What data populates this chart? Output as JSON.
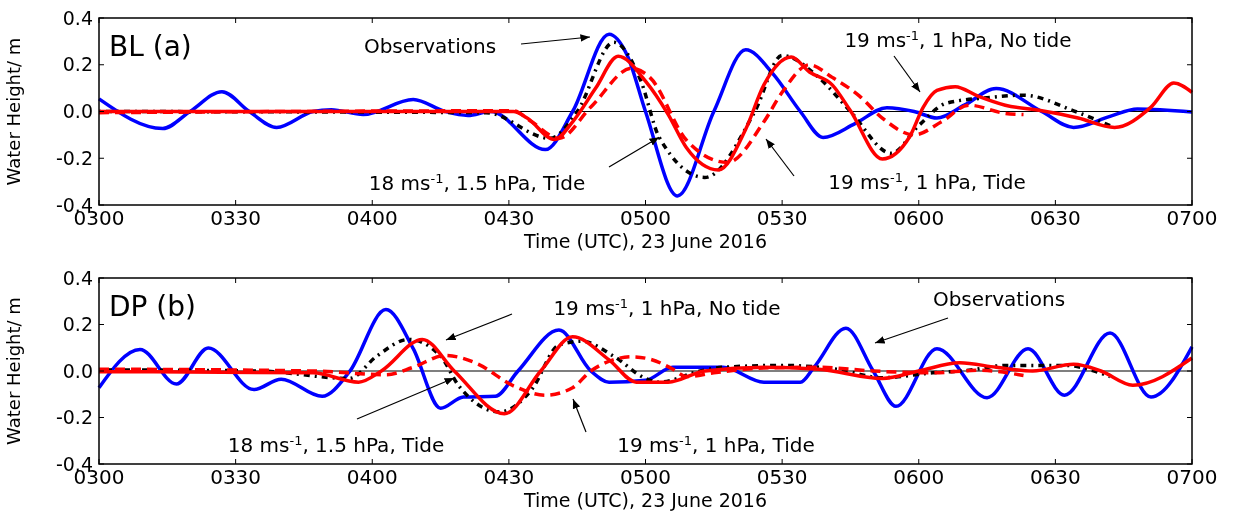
{
  "chart_data": [
    {
      "type": "line",
      "title": "BL (a)",
      "xlabel": "Time (UTC), 23 June 2016",
      "ylabel": "Water Height/ m",
      "xlim": [
        "2016-06-23T03:00",
        "2016-06-23T07:00"
      ],
      "xticks": [
        {
          "value": "2016-06-23T03:00",
          "label": "0300"
        },
        {
          "value": "2016-06-23T03:30",
          "label": "0330"
        },
        {
          "value": "2016-06-23T04:00",
          "label": "0400"
        },
        {
          "value": "2016-06-23T04:30",
          "label": "0430"
        },
        {
          "value": "2016-06-23T05:00",
          "label": "0500"
        },
        {
          "value": "2016-06-23T05:30",
          "label": "0530"
        },
        {
          "value": "2016-06-23T06:00",
          "label": "0600"
        },
        {
          "value": "2016-06-23T06:30",
          "label": "0630"
        },
        {
          "value": "2016-06-23T07:00",
          "label": "0700"
        }
      ],
      "ylim": [
        -0.4,
        0.4
      ],
      "yticks": [
        -0.4,
        -0.2,
        {
          "value": 0,
          "label": "0.0"
        },
        0.2,
        0.4
      ],
      "ref_lines": [
        {
          "axis": "y",
          "value": 0,
          "color": "#000000"
        }
      ],
      "series": [
        {
          "color": "#0000ff",
          "line_style": "solid",
          "x": [
            "2016-06-23T03:00",
            "2016-06-23T03:14",
            "2016-06-23T03:20",
            "2016-06-23T03:27",
            "2016-06-23T03:33",
            "2016-06-23T03:39",
            "2016-06-23T03:47",
            "2016-06-23T03:51",
            "2016-06-23T03:58",
            "2016-06-23T04:09",
            "2016-06-23T04:16",
            "2016-06-23T04:21",
            "2016-06-23T04:26",
            "2016-06-23T04:38",
            "2016-06-23T04:44",
            "2016-06-23T04:52",
            "2016-06-23T04:56",
            "2016-06-23T05:00",
            "2016-06-23T05:07",
            "2016-06-23T05:15",
            "2016-06-23T05:22",
            "2016-06-23T05:28",
            "2016-06-23T05:34",
            "2016-06-23T05:39",
            "2016-06-23T05:46",
            "2016-06-23T05:53",
            "2016-06-23T05:59",
            "2016-06-23T06:04",
            "2016-06-23T06:10",
            "2016-06-23T06:17",
            "2016-06-23T06:27",
            "2016-06-23T06:34",
            "2016-06-23T06:42",
            "2016-06-23T06:48",
            "2016-06-23T07:00"
          ],
          "values": [
            0.054,
            -0.073,
            0,
            0.085,
            0,
            -0.068,
            0,
            0.008,
            -0.013,
            0.051,
            0,
            -0.017,
            0,
            -0.163,
            0,
            0.331,
            0.24,
            0,
            -0.361,
            0,
            0.264,
            0.161,
            0,
            -0.111,
            -0.052,
            0.016,
            0,
            -0.028,
            0.027,
            0.098,
            0,
            -0.068,
            -0.021,
            0.011,
            -0.002
          ]
        },
        {
          "color": "#000000",
          "line_style": "dotted",
          "x": [
            "2016-06-23T03:00",
            "2016-06-23T04:25",
            "2016-06-23T04:39",
            "2016-06-23T04:45",
            "2016-06-23T04:53",
            "2016-06-23T04:59",
            "2016-06-23T05:03",
            "2016-06-23T05:13",
            "2016-06-23T05:24",
            "2016-06-23T05:30",
            "2016-06-23T05:38",
            "2016-06-23T05:45",
            "2016-06-23T05:54",
            "2016-06-23T06:00",
            "2016-06-23T06:06",
            "2016-06-23T06:15",
            "2016-06-23T06:23",
            "2016-06-23T06:34",
            "2016-06-23T06:42"
          ],
          "values": [
            0,
            -0.005,
            -0.115,
            0,
            0.296,
            0.13,
            -0.11,
            -0.282,
            0,
            0.24,
            0.146,
            0,
            -0.179,
            -0.06,
            0.035,
            0.059,
            0.07,
            0.003,
            -0.06
          ]
        },
        {
          "color": "#ff0000",
          "line_style": "dashed",
          "x": [
            "2016-06-23T03:00",
            "2016-06-23T04:31",
            "2016-06-23T04:35",
            "2016-06-23T04:41",
            "2016-06-23T04:48",
            "2016-06-23T04:57",
            "2016-06-23T05:01",
            "2016-06-23T05:09",
            "2016-06-23T05:18",
            "2016-06-23T05:26",
            "2016-06-23T05:30",
            "2016-06-23T05:36",
            "2016-06-23T05:41",
            "2016-06-23T05:47",
            "2016-06-23T05:52",
            "2016-06-23T05:59",
            "2016-06-23T06:05",
            "2016-06-23T06:11",
            "2016-06-23T06:19",
            "2016-06-23T06:23"
          ],
          "values": [
            -0.005,
            0.003,
            -0.044,
            -0.115,
            0.019,
            0.185,
            0.145,
            -0.123,
            -0.218,
            -0.044,
            0.082,
            0.2,
            0.146,
            0.066,
            -0.028,
            -0.1,
            -0.044,
            0.027,
            -0.008,
            -0.013
          ]
        },
        {
          "color": "#ff0000",
          "line_style": "solid",
          "x": [
            "2016-06-23T03:00",
            "2016-06-23T04:31",
            "2016-06-23T04:34",
            "2016-06-23T04:40",
            "2016-06-23T04:44",
            "2016-06-23T04:49",
            "2016-06-23T04:54",
            "2016-06-23T05:00",
            "2016-06-23T05:05",
            "2016-06-23T05:09",
            "2016-06-23T05:16",
            "2016-06-23T05:22",
            "2016-06-23T05:26",
            "2016-06-23T05:32",
            "2016-06-23T05:36",
            "2016-06-23T05:41",
            "2016-06-23T05:45",
            "2016-06-23T05:52",
            "2016-06-23T05:58",
            "2016-06-23T06:01",
            "2016-06-23T06:04",
            "2016-06-23T06:08",
            "2016-06-23T06:13",
            "2016-06-23T06:19",
            "2016-06-23T06:27",
            "2016-06-23T06:35",
            "2016-06-23T06:43",
            "2016-06-23T06:51",
            "2016-06-23T06:56",
            "2016-06-23T07:00"
          ],
          "values": [
            0,
            0,
            -0.028,
            -0.12,
            -0.044,
            0.098,
            0.236,
            0.13,
            -0.013,
            -0.155,
            -0.25,
            -0.076,
            0.114,
            0.233,
            0.169,
            0.114,
            0.003,
            -0.203,
            -0.108,
            0.019,
            0.09,
            0.106,
            0.066,
            0.027,
            0.003,
            -0.028,
            -0.068,
            0.019,
            0.122,
            0.082
          ]
        }
      ],
      "annotations": [
        "Observations",
        {
          "text": "18 ms$^{-1}$, 1.5 hPa, Tide",
          "x": "2016-06-23T05:03",
          "y": -0.11
        },
        "19 ms$^{-1}$, 1 hPa, Tide",
        "19 ms$^{-1}$, 1 hPa, No tide"
      ]
    },
    {
      "type": "line",
      "title": "DP (b)",
      "xlabel": "Time (UTC), 23 June 2016",
      "ylabel": "Water Height/ m",
      "xlim": [
        "2016-06-23T03:00",
        "2016-06-23T07:00"
      ],
      "xticks": [
        {
          "value": "2016-06-23T03:00",
          "label": "0300"
        },
        {
          "value": "2016-06-23T03:30",
          "label": "0330"
        },
        {
          "value": "2016-06-23T04:00",
          "label": "0400"
        },
        {
          "value": "2016-06-23T04:30",
          "label": "0430"
        },
        {
          "value": "2016-06-23T05:00",
          "label": "0500"
        },
        {
          "value": "2016-06-23T05:30",
          "label": "0530"
        },
        {
          "value": "2016-06-23T06:00",
          "label": "0600"
        },
        {
          "value": "2016-06-23T06:30",
          "label": "0630"
        },
        {
          "value": "2016-06-23T07:00",
          "label": "0700"
        }
      ],
      "ylim": [
        -0.4,
        0.4
      ],
      "yticks": [
        -0.4,
        -0.2,
        {
          "value": 0,
          "label": "0.0"
        },
        0.2,
        0.4
      ],
      "ref_lines": [
        {
          "axis": "y",
          "value": 0,
          "color": "#000000"
        }
      ],
      "series": [
        {
          "color": "#0000ff",
          "line_style": "solid",
          "x": [
            "2016-06-23T03:00",
            "2016-06-23T03:09",
            "2016-06-23T03:17",
            "2016-06-23T03:24",
            "2016-06-23T03:34",
            "2016-06-23T03:40",
            "2016-06-23T03:49",
            "2016-06-23T03:55",
            "2016-06-23T04:03",
            "2016-06-23T04:09",
            "2016-06-23T04:15",
            "2016-06-23T04:20",
            "2016-06-23T04:27",
            "2016-06-23T04:32",
            "2016-06-23T04:41",
            "2016-06-23T04:48",
            "2016-06-23T04:52",
            "2016-06-23T05:00",
            "2016-06-23T05:06",
            "2016-06-23T05:17",
            "2016-06-23T05:26",
            "2016-06-23T05:34",
            "2016-06-23T05:37",
            "2016-06-23T05:44",
            "2016-06-23T05:50",
            "2016-06-23T05:55",
            "2016-06-23T06:04",
            "2016-06-23T06:15",
            "2016-06-23T06:24",
            "2016-06-23T06:32",
            "2016-06-23T06:42",
            "2016-06-23T06:51",
            "2016-06-23T07:00"
          ],
          "values": [
            -0.072,
            0.093,
            -0.056,
            0.099,
            -0.08,
            -0.035,
            -0.109,
            -0.003,
            0.264,
            0.096,
            -0.16,
            -0.112,
            -0.109,
            0,
            0.176,
            0,
            -0.048,
            -0.04,
            0.016,
            0.016,
            -0.048,
            -0.048,
            0.016,
            0.184,
            0,
            -0.152,
            0.096,
            -0.115,
            0.096,
            -0.104,
            0.163,
            -0.112,
            0.104
          ]
        },
        {
          "color": "#000000",
          "line_style": "dotted",
          "x": [
            "2016-06-23T03:00",
            "2016-06-23T03:35",
            "2016-06-23T03:55",
            "2016-06-23T04:01",
            "2016-06-23T04:08",
            "2016-06-23T04:15",
            "2016-06-23T04:19",
            "2016-06-23T04:28",
            "2016-06-23T04:35",
            "2016-06-23T04:41",
            "2016-06-23T04:46",
            "2016-06-23T04:53",
            "2016-06-23T05:00",
            "2016-06-23T05:03",
            "2016-06-23T05:12",
            "2016-06-23T05:17",
            "2016-06-23T05:30",
            "2016-06-23T05:42",
            "2016-06-23T05:52",
            "2016-06-23T06:03",
            "2016-06-23T06:11",
            "2016-06-23T06:19",
            "2016-06-23T06:32",
            "2016-06-23T06:42"
          ],
          "values": [
            0.005,
            0,
            -0.032,
            0.064,
            0.136,
            0.064,
            -0.064,
            -0.176,
            -0.08,
            0.112,
            0.128,
            0.064,
            -0.032,
            -0.048,
            0,
            0.016,
            0.024,
            0.008,
            -0.029,
            -0.008,
            0.003,
            0.024,
            0.024,
            -0.024
          ]
        },
        {
          "color": "#ff0000",
          "line_style": "dashed",
          "x": [
            "2016-06-23T03:00",
            "2016-06-23T03:47",
            "2016-06-23T04:03",
            "2016-06-23T04:09",
            "2016-06-23T04:16",
            "2016-06-23T04:23",
            "2016-06-23T04:31",
            "2016-06-23T04:38",
            "2016-06-23T04:44",
            "2016-06-23T04:48",
            "2016-06-23T04:57",
            "2016-06-23T05:01",
            "2016-06-23T05:06",
            "2016-06-23T05:09",
            "2016-06-23T05:15",
            "2016-06-23T05:26",
            "2016-06-23T05:38",
            "2016-06-23T05:50",
            "2016-06-23T06:03",
            "2016-06-23T06:13",
            "2016-06-23T06:23"
          ],
          "values": [
            0.008,
            0,
            -0.016,
            0.016,
            0.067,
            0.032,
            -0.064,
            -0.104,
            -0.072,
            0,
            0.061,
            0.051,
            0.008,
            -0.024,
            -0.008,
            0.013,
            0.016,
            0,
            -0.008,
            0.003,
            -0.019
          ]
        },
        {
          "color": "#ff0000",
          "line_style": "solid",
          "x": [
            "2016-06-23T03:00",
            "2016-06-23T03:47",
            "2016-06-23T03:57",
            "2016-06-23T04:02",
            "2016-06-23T04:11",
            "2016-06-23T04:18",
            "2016-06-23T04:29",
            "2016-06-23T04:37",
            "2016-06-23T04:44",
            "2016-06-23T04:52",
            "2016-06-23T04:58",
            "2016-06-23T05:05",
            "2016-06-23T05:13",
            "2016-06-23T05:26",
            "2016-06-23T05:38",
            "2016-06-23T05:52",
            "2016-06-23T06:00",
            "2016-06-23T06:09",
            "2016-06-23T06:17",
            "2016-06-23T06:25",
            "2016-06-23T06:34",
            "2016-06-23T06:40",
            "2016-06-23T06:47",
            "2016-06-23T07:00"
          ],
          "values": [
            -0.003,
            -0.008,
            -0.048,
            0,
            0.136,
            0,
            -0.184,
            0,
            0.147,
            0.048,
            -0.048,
            -0.048,
            0,
            0.016,
            0.008,
            -0.032,
            0,
            0.035,
            0.016,
            0,
            0.029,
            0,
            -0.061,
            0.056
          ]
        }
      ],
      "annotations": [
        "19 ms$^{-1}$, 1 hPa, No tide",
        {
          "text": "18 ms$^{-1}$, 1.5 hPa, Tide",
          "x": "2016-06-23T04:18",
          "y": -0.03
        },
        "19 ms$^{-1}$, 1 hPa, Tide",
        "Observations"
      ]
    }
  ]
}
